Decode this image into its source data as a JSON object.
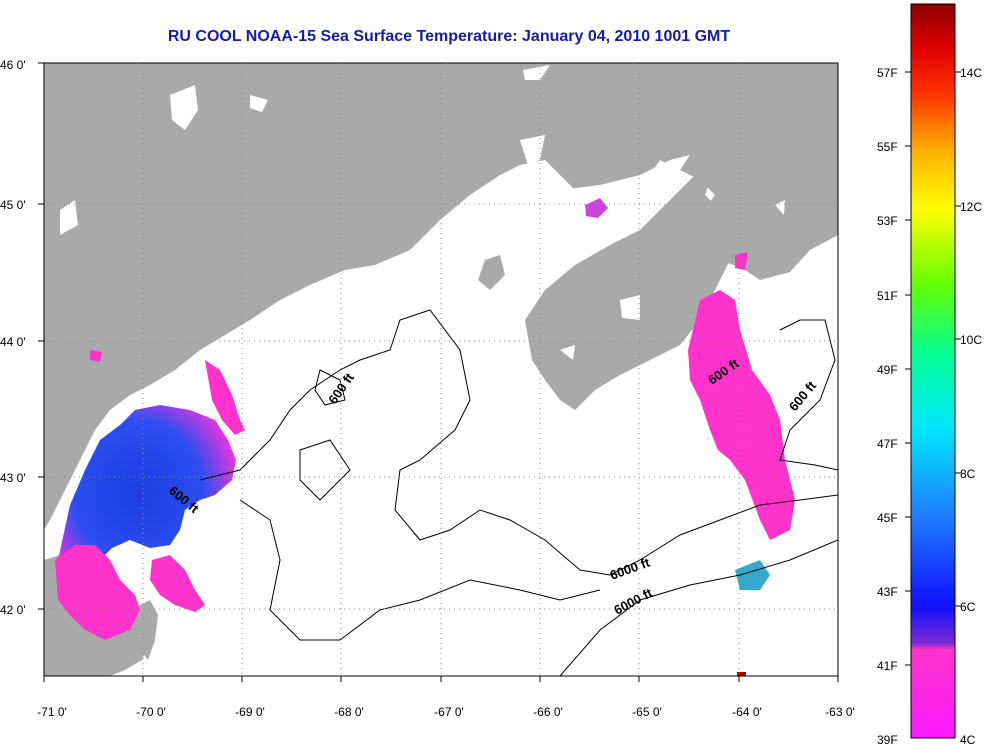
{
  "title": "RU COOL  NOAA-15  Sea Surface Temperature:  January 04, 2010 1001 GMT",
  "map": {
    "lon_range": [
      -71,
      -63
    ],
    "lat_range": [
      41.5,
      46
    ],
    "x_ticks": [
      "-71 0'",
      "-70 0'",
      "-69 0'",
      "-68 0'",
      "-67 0'",
      "-66 0'",
      "-65 0'",
      "-64 0'",
      "-63 0'"
    ],
    "y_ticks": [
      "46 0'",
      "45 0'",
      "44 0'",
      "43 0'",
      "42 0'"
    ],
    "contour_labels": [
      "600 ft",
      "600 ft",
      "600 ft",
      "600 ft",
      "6000 ft"
    ],
    "land_color": "#a9a9a9",
    "water_color": "#ffffff"
  },
  "colorbar": {
    "fahrenheit": [
      "57F",
      "55F",
      "53F",
      "51F",
      "49F",
      "47F",
      "45F",
      "43F",
      "41F",
      "39F"
    ],
    "celsius": [
      "14C",
      "12C",
      "10C",
      "8C",
      "6C",
      "4C"
    ]
  }
}
